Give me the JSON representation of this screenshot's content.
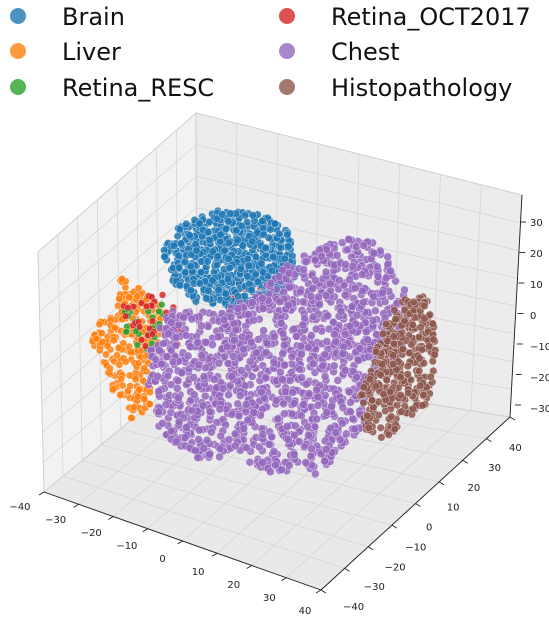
{
  "chart_data": {
    "type": "scatter",
    "projection": "3d",
    "title": "",
    "legend": {
      "placement": "top"
    },
    "series": [
      {
        "name": "Brain",
        "color": "#1f77b4"
      },
      {
        "name": "Liver",
        "color": "#ff7f0e"
      },
      {
        "name": "Retina_RESC",
        "color": "#2ca02c"
      },
      {
        "name": "Retina_OCT2017",
        "color": "#d62728"
      },
      {
        "name": "Chest",
        "color": "#9467bd"
      },
      {
        "name": "Histopathology",
        "color": "#8c564b"
      }
    ],
    "axes": {
      "x": {
        "range": [
          -40,
          40
        ],
        "ticks": [
          "−40",
          "−30",
          "−20",
          "−10",
          "0",
          "10",
          "20",
          "30",
          "40"
        ]
      },
      "y": {
        "range": [
          -40,
          40
        ],
        "ticks": [
          "−40",
          "−30",
          "−20",
          "−10",
          "0",
          "10",
          "20",
          "30",
          "40"
        ]
      },
      "z": {
        "range": [
          -40,
          40
        ],
        "ticks": [
          "−30",
          "−20",
          "−10",
          "0",
          "10",
          "20",
          "30"
        ]
      }
    },
    "grid": true
  }
}
